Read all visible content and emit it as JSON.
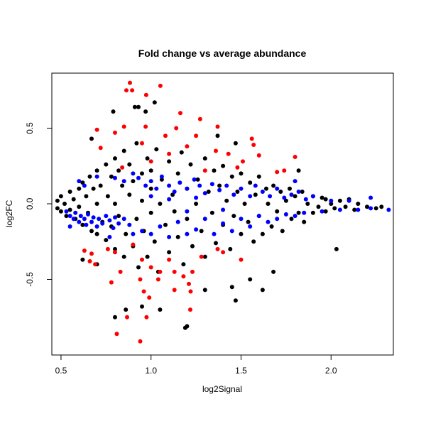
{
  "chart_data": {
    "type": "scatter",
    "title": "Fold change vs average abundance",
    "xlabel": "log2Signal",
    "ylabel": "log2FC",
    "xlim": [
      0.449,
      2.346
    ],
    "ylim": [
      -1.0,
      0.864
    ],
    "xticks": [
      {
        "value": 0.5,
        "label": "0.5"
      },
      {
        "value": 1.0,
        "label": "1.0"
      },
      {
        "value": 1.5,
        "label": "1.5"
      },
      {
        "value": 2.0,
        "label": "2.0"
      }
    ],
    "yticks": [
      {
        "value": -0.5,
        "label": "-0.5"
      },
      {
        "value": 0.0,
        "label": "0.0"
      },
      {
        "value": 0.5,
        "label": "0.5"
      }
    ],
    "grid": false,
    "series": [
      {
        "color": "#000000",
        "points": [
          [
            0.48,
            -0.03
          ],
          [
            0.48,
            0.02
          ],
          [
            0.5,
            -0.05
          ],
          [
            0.5,
            0.05
          ],
          [
            0.52,
            0.0
          ],
          [
            0.53,
            -0.08
          ],
          [
            0.55,
            0.08
          ],
          [
            0.55,
            -0.04
          ],
          [
            0.57,
            0.03
          ],
          [
            0.58,
            -0.1
          ],
          [
            0.6,
            0.1
          ],
          [
            0.6,
            -0.02
          ],
          [
            0.62,
            0.14
          ],
          [
            0.62,
            -0.14
          ],
          [
            0.64,
            0.05
          ],
          [
            0.65,
            -0.06
          ],
          [
            0.66,
            0.18
          ],
          [
            0.67,
            -0.18
          ],
          [
            0.68,
            0.1
          ],
          [
            0.7,
            0.22
          ],
          [
            0.7,
            -0.2
          ],
          [
            0.7,
            0.0
          ],
          [
            0.72,
            0.12
          ],
          [
            0.73,
            -0.12
          ],
          [
            0.75,
            0.26
          ],
          [
            0.75,
            -0.24
          ],
          [
            0.76,
            0.05
          ],
          [
            0.78,
            0.18
          ],
          [
            0.78,
            -0.15
          ],
          [
            0.8,
            0.3
          ],
          [
            0.8,
            -0.3
          ],
          [
            0.8,
            0.0
          ],
          [
            0.82,
            0.22
          ],
          [
            0.82,
            -0.08
          ],
          [
            0.84,
            0.12
          ],
          [
            0.85,
            -0.35
          ],
          [
            0.85,
            0.35
          ],
          [
            0.86,
            -0.2
          ],
          [
            0.88,
            0.06
          ],
          [
            0.88,
            0.26
          ],
          [
            0.9,
            -0.28
          ],
          [
            0.9,
            0.15
          ],
          [
            0.92,
            -0.1
          ],
          [
            0.92,
            0.4
          ],
          [
            0.93,
            -0.42
          ],
          [
            0.95,
            0.2
          ],
          [
            0.95,
            0.02
          ],
          [
            0.96,
            -0.18
          ],
          [
            0.98,
            0.3
          ],
          [
            0.98,
            -0.35
          ],
          [
            1.0,
            0.1
          ],
          [
            1.0,
            -0.06
          ],
          [
            1.0,
            0.22
          ],
          [
            1.02,
            -0.25
          ],
          [
            1.03,
            0.36
          ],
          [
            1.04,
            -0.45
          ],
          [
            1.05,
            0.0
          ],
          [
            1.06,
            0.16
          ],
          [
            1.08,
            -0.14
          ],
          [
            1.1,
            0.28
          ],
          [
            1.1,
            -0.32
          ],
          [
            1.12,
            0.06
          ],
          [
            1.13,
            -0.05
          ],
          [
            1.15,
            0.2
          ],
          [
            1.15,
            -0.22
          ],
          [
            1.17,
            0.34
          ],
          [
            1.18,
            -0.4
          ],
          [
            1.2,
            0.1
          ],
          [
            1.2,
            -0.1
          ],
          [
            1.22,
            0.26
          ],
          [
            1.23,
            -0.28
          ],
          [
            1.25,
            0.0
          ],
          [
            1.26,
            0.16
          ],
          [
            1.28,
            -0.18
          ],
          [
            1.3,
            0.3
          ],
          [
            1.3,
            -0.35
          ],
          [
            1.32,
            0.08
          ],
          [
            1.34,
            -0.06
          ],
          [
            1.35,
            0.22
          ],
          [
            1.36,
            -0.26
          ],
          [
            1.38,
            0.12
          ],
          [
            1.4,
            -0.14
          ],
          [
            1.4,
            0.25
          ],
          [
            1.42,
            0.02
          ],
          [
            1.44,
            -0.3
          ],
          [
            1.45,
            0.18
          ],
          [
            1.46,
            -0.08
          ],
          [
            1.48,
            0.08
          ],
          [
            1.5,
            -0.2
          ],
          [
            1.5,
            0.2
          ],
          [
            1.52,
            0.0
          ],
          [
            1.54,
            -0.12
          ],
          [
            1.55,
            0.14
          ],
          [
            1.57,
            -0.25
          ],
          [
            1.58,
            0.06
          ],
          [
            1.6,
            0.18
          ],
          [
            1.6,
            -0.08
          ],
          [
            1.62,
            -0.2
          ],
          [
            1.64,
            0.1
          ],
          [
            1.65,
            0.0
          ],
          [
            1.67,
            -0.15
          ],
          [
            1.68,
            0.12
          ],
          [
            1.7,
            -0.05
          ],
          [
            1.72,
            0.08
          ],
          [
            1.73,
            -0.18
          ],
          [
            1.75,
            0.02
          ],
          [
            1.77,
            0.1
          ],
          [
            1.78,
            -0.1
          ],
          [
            1.8,
            0.05
          ],
          [
            1.82,
            -0.06
          ],
          [
            1.84,
            0.08
          ],
          [
            1.85,
            -0.12
          ],
          [
            1.87,
            0.0
          ],
          [
            1.9,
            0.05
          ],
          [
            1.9,
            -0.06
          ],
          [
            1.93,
            -0.02
          ],
          [
            1.95,
            0.04
          ],
          [
            1.97,
            -0.05
          ],
          [
            2.0,
            0.0
          ],
          [
            2.02,
            -0.03
          ],
          [
            2.05,
            0.02
          ],
          [
            2.08,
            -0.02
          ],
          [
            2.1,
            0.03
          ],
          [
            2.13,
            -0.04
          ],
          [
            2.15,
            0.0
          ],
          [
            2.2,
            -0.02
          ],
          [
            2.25,
            -0.03
          ],
          [
            2.28,
            -0.02
          ],
          [
            0.79,
            0.61
          ],
          [
            1.02,
            0.67
          ],
          [
            0.91,
            0.64
          ],
          [
            0.93,
            0.64
          ],
          [
            0.97,
            0.61
          ],
          [
            1.37,
            0.45
          ],
          [
            1.47,
            0.4
          ],
          [
            0.67,
            0.43
          ],
          [
            1.2,
            -0.81
          ],
          [
            1.19,
            -0.82
          ],
          [
            0.8,
            -0.75
          ],
          [
            0.86,
            -0.7
          ],
          [
            0.95,
            -0.68
          ],
          [
            1.05,
            -0.7
          ],
          [
            1.47,
            -0.64
          ],
          [
            1.62,
            -0.57
          ],
          [
            2.03,
            -0.3
          ],
          [
            1.82,
            0.22
          ],
          [
            1.97,
            0.03
          ],
          [
            1.68,
            -0.45
          ],
          [
            1.3,
            -0.57
          ],
          [
            0.7,
            -0.4
          ],
          [
            0.62,
            -0.37
          ],
          [
            1.55,
            -0.5
          ],
          [
            1.45,
            -0.55
          ]
        ]
      },
      {
        "color": "#0000ff",
        "points": [
          [
            0.53,
            -0.05
          ],
          [
            0.55,
            -0.08
          ],
          [
            0.57,
            -0.1
          ],
          [
            0.58,
            -0.06
          ],
          [
            0.6,
            -0.12
          ],
          [
            0.61,
            -0.08
          ],
          [
            0.63,
            -0.1
          ],
          [
            0.64,
            -0.14
          ],
          [
            0.65,
            -0.07
          ],
          [
            0.67,
            -0.12
          ],
          [
            0.68,
            -0.09
          ],
          [
            0.7,
            -0.15
          ],
          [
            0.71,
            -0.1
          ],
          [
            0.73,
            -0.13
          ],
          [
            0.75,
            -0.08
          ],
          [
            0.77,
            -0.11
          ],
          [
            0.79,
            -0.16
          ],
          [
            0.8,
            -0.09
          ],
          [
            0.82,
            -0.13
          ],
          [
            0.85,
            -0.1
          ],
          [
            0.88,
            -0.14
          ],
          [
            0.9,
            -0.2
          ],
          [
            0.95,
            -0.18
          ],
          [
            1.0,
            -0.2
          ],
          [
            1.05,
            -0.15
          ],
          [
            1.1,
            -0.22
          ],
          [
            1.15,
            -0.12
          ],
          [
            1.2,
            -0.2
          ],
          [
            1.25,
            -0.17
          ],
          [
            1.3,
            -0.1
          ],
          [
            1.35,
            -0.2
          ],
          [
            1.4,
            -0.13
          ],
          [
            1.45,
            -0.18
          ],
          [
            1.5,
            -0.1
          ],
          [
            1.55,
            -0.15
          ],
          [
            1.6,
            -0.08
          ],
          [
            1.65,
            -0.12
          ],
          [
            1.7,
            -0.1
          ],
          [
            1.75,
            -0.07
          ],
          [
            1.8,
            -0.08
          ],
          [
            1.85,
            -0.06
          ],
          [
            1.95,
            -0.05
          ],
          [
            2.05,
            -0.04
          ],
          [
            2.15,
            -0.04
          ],
          [
            2.22,
            -0.03
          ],
          [
            2.32,
            -0.04
          ],
          [
            0.6,
            0.15
          ],
          [
            0.63,
            0.12
          ],
          [
            0.7,
            0.18
          ],
          [
            0.8,
            0.17
          ],
          [
            0.85,
            0.15
          ],
          [
            0.9,
            0.2
          ],
          [
            0.93,
            0.17
          ],
          [
            0.97,
            0.12
          ],
          [
            1.0,
            0.15
          ],
          [
            1.03,
            0.1
          ],
          [
            1.06,
            0.18
          ],
          [
            1.1,
            0.12
          ],
          [
            1.13,
            0.08
          ],
          [
            1.16,
            0.14
          ],
          [
            1.2,
            0.1
          ],
          [
            1.24,
            0.16
          ],
          [
            1.27,
            0.12
          ],
          [
            1.3,
            0.07
          ],
          [
            1.34,
            0.13
          ],
          [
            1.38,
            0.09
          ],
          [
            1.42,
            0.12
          ],
          [
            1.46,
            0.06
          ],
          [
            1.5,
            0.1
          ],
          [
            1.55,
            0.05
          ],
          [
            1.58,
            0.12
          ],
          [
            1.62,
            0.08
          ],
          [
            1.66,
            0.05
          ],
          [
            1.7,
            0.1
          ],
          [
            1.74,
            0.04
          ],
          [
            1.78,
            0.06
          ],
          [
            1.82,
            0.08
          ],
          [
            1.86,
            0.03
          ],
          [
            1.9,
            0.05
          ],
          [
            2.0,
            0.02
          ],
          [
            2.1,
            0.02
          ],
          [
            2.22,
            0.04
          ],
          [
            1.0,
            0.05
          ],
          [
            1.1,
            0.03
          ],
          [
            1.25,
            0.04
          ],
          [
            1.4,
            -0.04
          ],
          [
            1.2,
            -0.05
          ],
          [
            0.55,
            -0.15
          ],
          [
            0.77,
            -0.22
          ],
          [
            1.8,
            0.15
          ]
        ]
      },
      {
        "color": "#ff0000",
        "points": [
          [
            0.883,
            0.8
          ],
          [
            0.895,
            0.75
          ],
          [
            0.863,
            0.75
          ],
          [
            1.052,
            0.78
          ],
          [
            0.973,
            0.72
          ],
          [
            1.163,
            0.6
          ],
          [
            1.273,
            0.56
          ],
          [
            0.7,
            0.49
          ],
          [
            0.85,
            0.51
          ],
          [
            0.97,
            0.51
          ],
          [
            1.14,
            0.5
          ],
          [
            1.37,
            0.51
          ],
          [
            1.56,
            0.43
          ],
          [
            1.57,
            0.39
          ],
          [
            1.08,
            0.45
          ],
          [
            1.25,
            0.45
          ],
          [
            0.8,
            0.47
          ],
          [
            1.6,
            0.32
          ],
          [
            1.8,
            0.31
          ],
          [
            1.43,
            0.33
          ],
          [
            1.36,
            0.35
          ],
          [
            1.51,
            0.28
          ],
          [
            1.48,
            0.24
          ],
          [
            1.74,
            0.22
          ],
          [
            1.7,
            0.21
          ],
          [
            0.72,
            0.37
          ],
          [
            0.95,
            0.4
          ],
          [
            1.1,
            0.33
          ],
          [
            1.2,
            0.38
          ],
          [
            0.84,
            0.24
          ],
          [
            1.0,
            0.28
          ],
          [
            1.3,
            0.22
          ],
          [
            0.63,
            -0.31
          ],
          [
            0.67,
            -0.33
          ],
          [
            0.66,
            -0.38
          ],
          [
            0.69,
            -0.4
          ],
          [
            0.76,
            -0.3
          ],
          [
            0.8,
            -0.32
          ],
          [
            0.83,
            -0.45
          ],
          [
            0.9,
            -0.27
          ],
          [
            0.95,
            -0.37
          ],
          [
            1.0,
            -0.42
          ],
          [
            1.05,
            -0.45
          ],
          [
            1.1,
            -0.37
          ],
          [
            1.13,
            -0.45
          ],
          [
            1.18,
            -0.48
          ],
          [
            1.23,
            -0.45
          ],
          [
            1.28,
            -0.35
          ],
          [
            1.37,
            -0.3
          ],
          [
            1.4,
            -0.32
          ],
          [
            1.5,
            -0.37
          ],
          [
            0.78,
            -0.52
          ],
          [
            0.94,
            -0.5
          ],
          [
            1.04,
            -0.5
          ],
          [
            0.99,
            -0.62
          ],
          [
            0.96,
            -0.58
          ],
          [
            1.13,
            -0.57
          ],
          [
            1.22,
            -0.58
          ],
          [
            1.21,
            -0.53
          ],
          [
            0.867,
            -0.75
          ],
          [
            0.975,
            -0.75
          ],
          [
            1.218,
            -0.7
          ],
          [
            0.81,
            -0.86
          ],
          [
            0.94,
            -0.91
          ]
        ]
      }
    ]
  }
}
